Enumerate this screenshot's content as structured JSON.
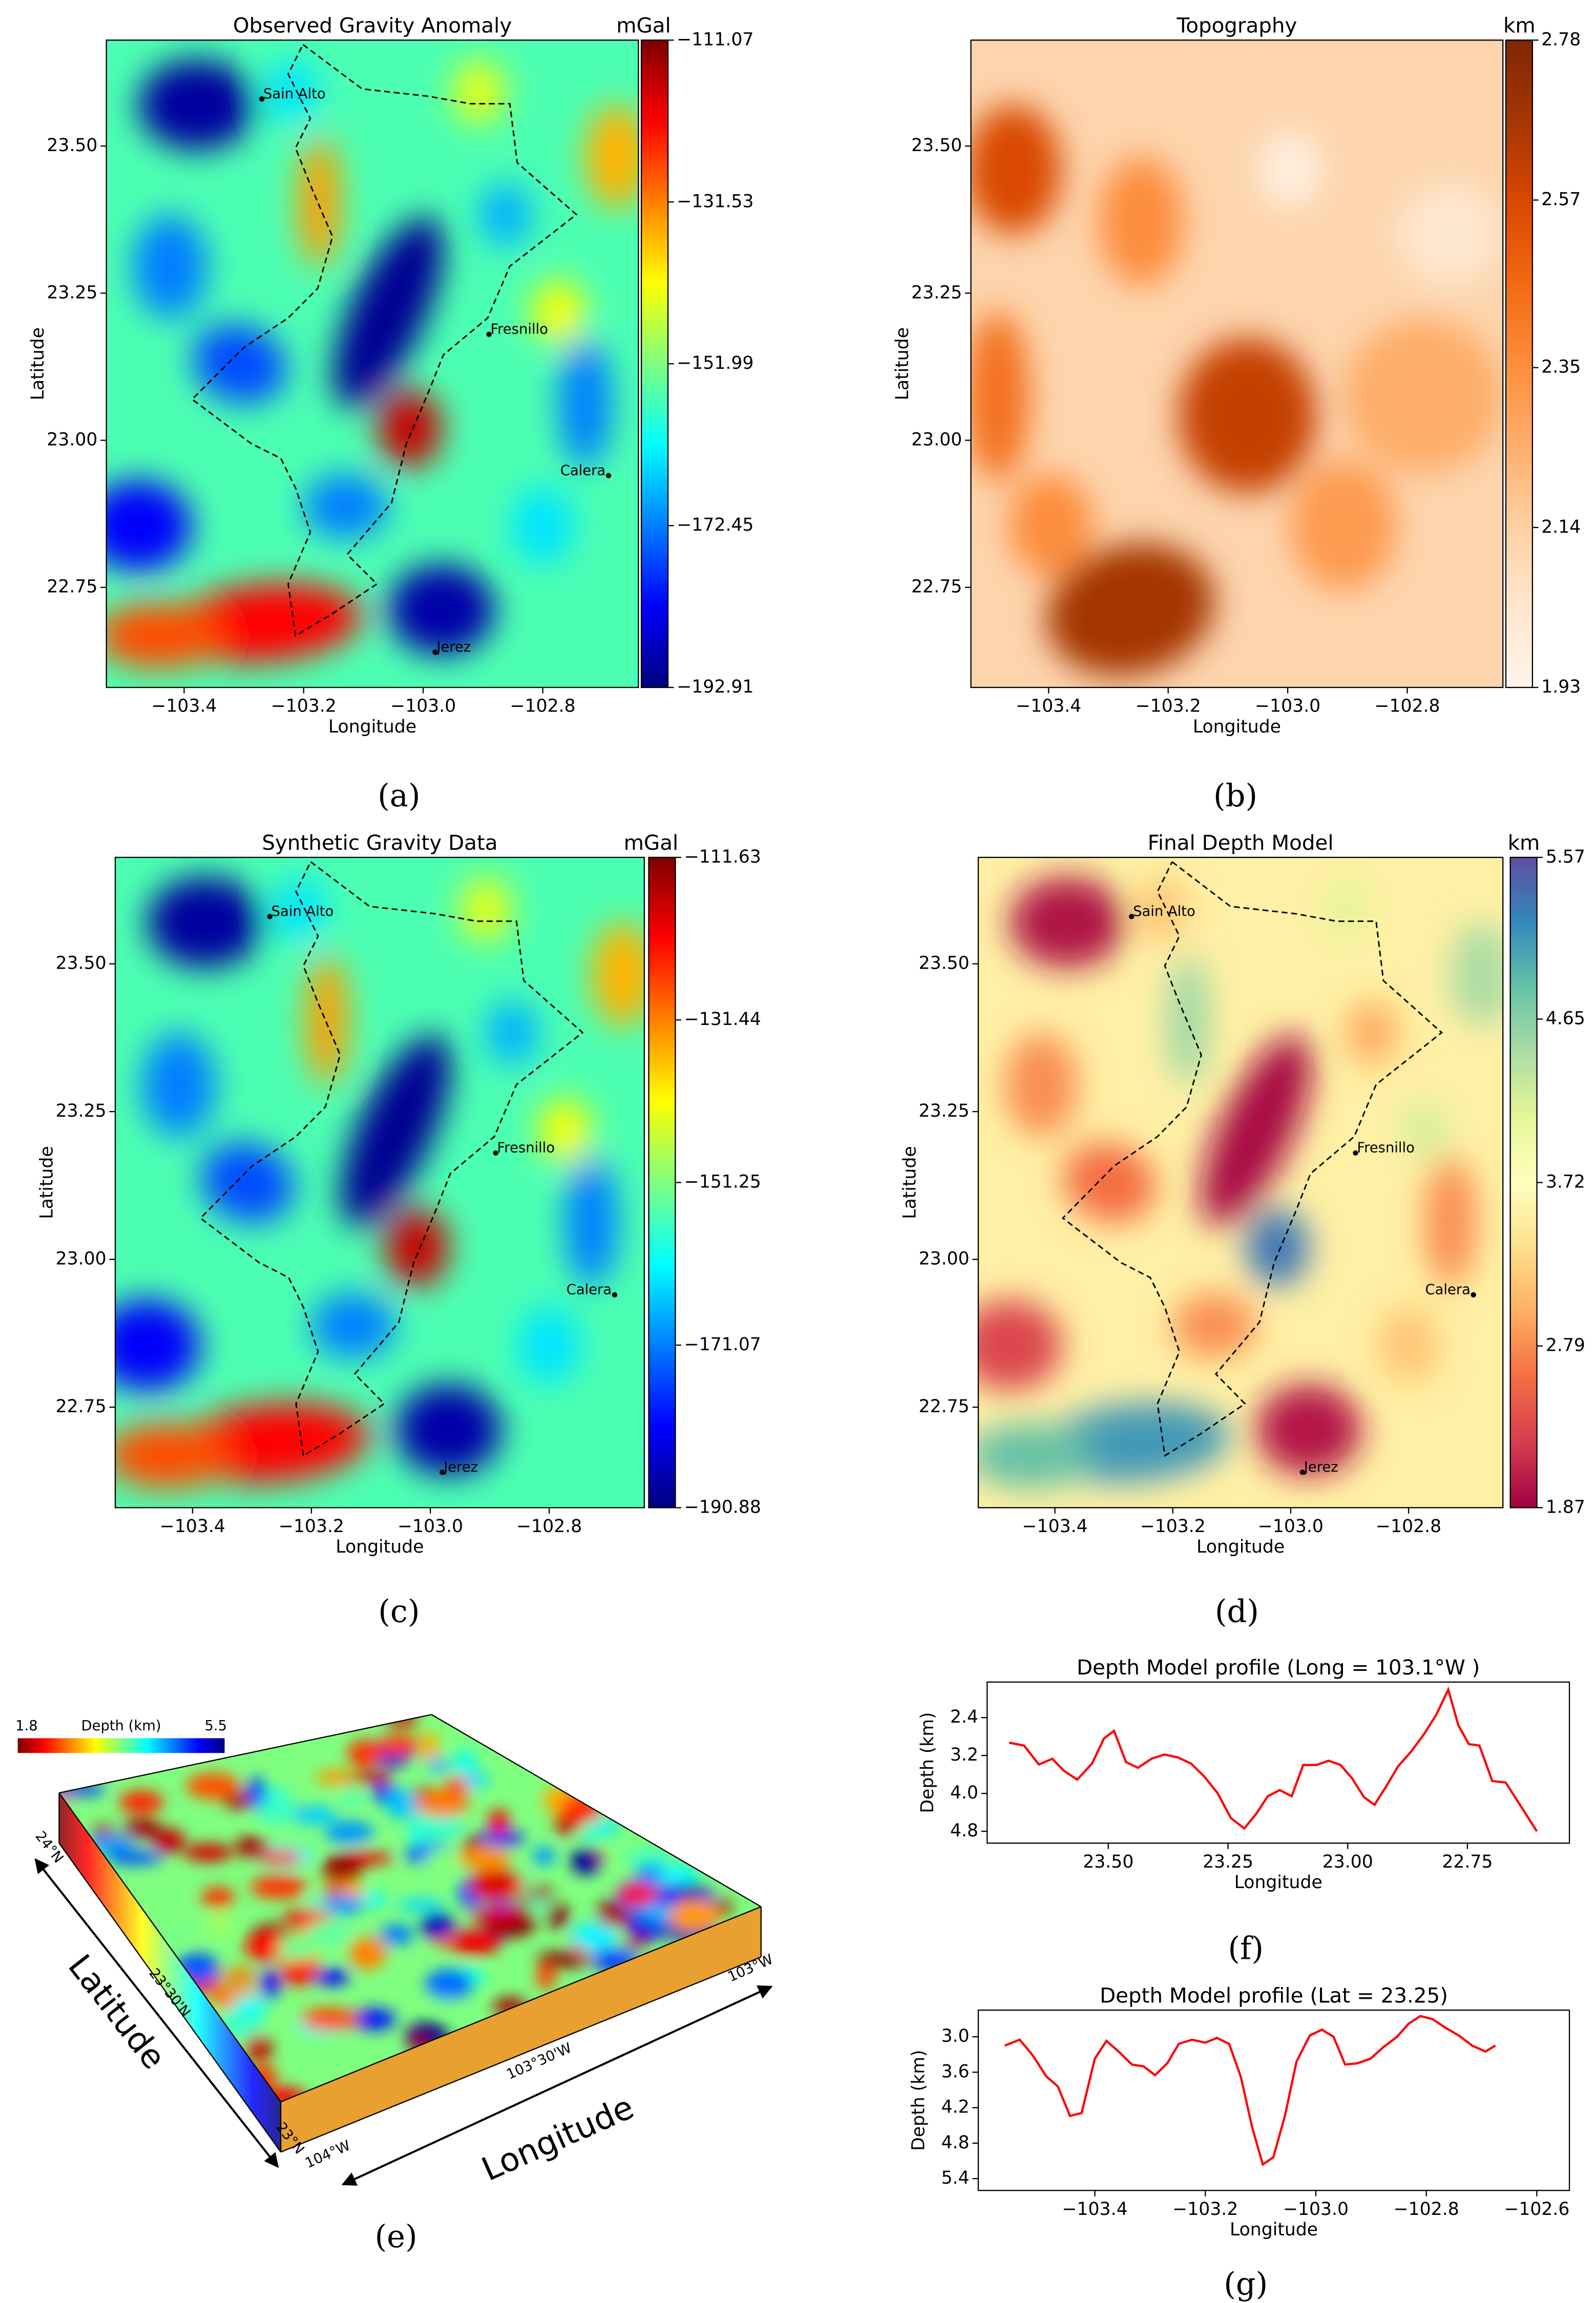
{
  "chart_data": [
    {
      "type": "heatmap",
      "panel_label": "(a)",
      "title": "Observed Gravity Anomaly",
      "xlabel": "Longitude",
      "ylabel": "Latitude",
      "colorbar_label": "mGal",
      "colormap": "jet",
      "xlim": [
        -103.53,
        -102.64
      ],
      "ylim": [
        22.58,
        23.68
      ],
      "xticks": [
        {
          "value": -103.4,
          "label": "−103.4"
        },
        {
          "value": -103.2,
          "label": "−103.2"
        },
        {
          "value": -103.0,
          "label": "−103.0"
        },
        {
          "value": -102.8,
          "label": "−102.8"
        }
      ],
      "yticks": [
        22.75,
        {
          "value": 23.0,
          "label": "23.00"
        },
        23.25,
        {
          "value": 23.5,
          "label": "23.50"
        }
      ],
      "clim": [
        -192.91,
        -111.07
      ],
      "cticks": [
        {
          "value": -111.07,
          "label": "−111.07"
        },
        {
          "value": -131.53,
          "label": "−131.53"
        },
        {
          "value": -151.99,
          "label": "−151.99"
        },
        {
          "value": -172.45,
          "label": "−172.45"
        },
        {
          "value": -192.91,
          "label": "−192.91"
        }
      ],
      "annotations": [
        {
          "text": "Sain Alto",
          "x": -103.27,
          "y": 23.58
        },
        {
          "text": "Fresnillo",
          "x": -102.89,
          "y": 23.18
        },
        {
          "text": "Calera",
          "x": -102.69,
          "y": 22.94
        },
        {
          "text": "Jerez",
          "x": -102.98,
          "y": 22.64
        }
      ]
    },
    {
      "type": "heatmap",
      "panel_label": "(b)",
      "title": "Topography",
      "xlabel": "Longitude",
      "ylabel": "Latitude",
      "colorbar_label": "km",
      "colormap": "Oranges",
      "xlim": [
        -103.53,
        -102.64
      ],
      "ylim": [
        22.58,
        23.68
      ],
      "xticks": [
        {
          "value": -103.4,
          "label": "−103.4"
        },
        {
          "value": -103.2,
          "label": "−103.2"
        },
        {
          "value": -103.0,
          "label": "−103.0"
        },
        {
          "value": -102.8,
          "label": "−102.8"
        }
      ],
      "yticks": [
        22.75,
        {
          "value": 23.0,
          "label": "23.00"
        },
        23.25,
        {
          "value": 23.5,
          "label": "23.50"
        }
      ],
      "clim": [
        1.93,
        2.78
      ],
      "cticks": [
        2.78,
        2.57,
        2.35,
        2.14,
        1.93
      ]
    },
    {
      "type": "heatmap",
      "panel_label": "(c)",
      "title": "Synthetic Gravity Data",
      "xlabel": "Longitude",
      "ylabel": "Latitude",
      "colorbar_label": "mGal",
      "colormap": "jet",
      "xlim": [
        -103.53,
        -102.64
      ],
      "ylim": [
        22.58,
        23.68
      ],
      "xticks": [
        {
          "value": -103.4,
          "label": "−103.4"
        },
        {
          "value": -103.2,
          "label": "−103.2"
        },
        {
          "value": -103.0,
          "label": "−103.0"
        },
        {
          "value": -102.8,
          "label": "−102.8"
        }
      ],
      "yticks": [
        22.75,
        {
          "value": 23.0,
          "label": "23.00"
        },
        23.25,
        {
          "value": 23.5,
          "label": "23.50"
        }
      ],
      "clim": [
        -190.88,
        -111.63
      ],
      "cticks": [
        {
          "value": -111.63,
          "label": "−111.63"
        },
        {
          "value": -131.44,
          "label": "−131.44"
        },
        {
          "value": -151.25,
          "label": "−151.25"
        },
        {
          "value": -171.07,
          "label": "−171.07"
        },
        {
          "value": -190.88,
          "label": "−190.88"
        }
      ],
      "annotations": [
        {
          "text": "Sain Alto",
          "x": -103.27,
          "y": 23.58
        },
        {
          "text": "Fresnillo",
          "x": -102.89,
          "y": 23.18
        },
        {
          "text": "Calera",
          "x": -102.69,
          "y": 22.94
        },
        {
          "text": "Jerez",
          "x": -102.98,
          "y": 22.64
        }
      ]
    },
    {
      "type": "heatmap",
      "panel_label": "(d)",
      "title": "Final Depth Model",
      "xlabel": "Longitude",
      "ylabel": "Latitude",
      "colorbar_label": "km",
      "colormap": "Spectral",
      "xlim": [
        -103.53,
        -102.64
      ],
      "ylim": [
        22.58,
        23.68
      ],
      "xticks": [
        {
          "value": -103.4,
          "label": "−103.4"
        },
        {
          "value": -103.2,
          "label": "−103.2"
        },
        {
          "value": -103.0,
          "label": "−103.0"
        },
        {
          "value": -102.8,
          "label": "−102.8"
        }
      ],
      "yticks": [
        22.75,
        {
          "value": 23.0,
          "label": "23.00"
        },
        23.25,
        {
          "value": 23.5,
          "label": "23.50"
        }
      ],
      "clim": [
        1.87,
        5.57
      ],
      "cticks": [
        5.57,
        4.65,
        3.72,
        2.79,
        1.87
      ],
      "annotations": [
        {
          "text": "Sain Alto",
          "x": -103.27,
          "y": 23.58
        },
        {
          "text": "Fresnillo",
          "x": -102.89,
          "y": 23.18
        },
        {
          "text": "Calera",
          "x": -102.69,
          "y": 22.94
        },
        {
          "text": "Jerez",
          "x": -102.98,
          "y": 22.64
        }
      ]
    },
    {
      "type": "surface",
      "panel_label": "(e)",
      "xlabel": "Longitude",
      "ylabel": "Latitude",
      "colorbar_label": "Depth (km)",
      "colormap": "jet_r",
      "clim": [
        1.8,
        5.5
      ],
      "cticks": [
        1.8,
        5.5
      ],
      "xlim": [
        -104,
        -103
      ],
      "ylim": [
        23,
        24
      ],
      "xticks": [
        {
          "value": -104,
          "label": "104°W"
        },
        {
          "value": -103.5,
          "label": "103°30'W"
        },
        {
          "value": -103,
          "label": "103°W"
        }
      ],
      "yticks": [
        {
          "value": 24,
          "label": "24°N"
        },
        {
          "value": 23.5,
          "label": "23°30'N"
        },
        {
          "value": 23,
          "label": "23°N"
        }
      ]
    },
    {
      "type": "line",
      "panel_label": "(f)",
      "title": "Depth Model profile (Long = 103.1°W )",
      "xlabel": "Longitude",
      "ylabel": "Depth (km)",
      "xlim": [
        23.753,
        22.537
      ],
      "ylim": [
        5.05,
        1.65
      ],
      "xticks": [
        {
          "value": 23.5,
          "label": "23.50"
        },
        23.25,
        {
          "value": 23.0,
          "label": "23.00"
        },
        22.75
      ],
      "yticks": [
        2.4,
        3.2,
        {
          "value": 4.0,
          "label": "4.0"
        },
        4.8
      ],
      "color": "#ff0000",
      "x": [
        23.707,
        23.676,
        23.645,
        23.617,
        23.593,
        23.565,
        23.534,
        23.509,
        23.488,
        23.463,
        23.438,
        23.41,
        23.383,
        23.355,
        23.327,
        23.299,
        23.272,
        23.244,
        23.216,
        23.191,
        23.167,
        23.142,
        23.117,
        23.093,
        23.065,
        23.04,
        23.015,
        22.991,
        22.966,
        22.944,
        22.92,
        22.895,
        22.867,
        22.84,
        22.815,
        22.79,
        22.769,
        22.747,
        22.725,
        22.698,
        22.67,
        22.605
      ],
      "values": [
        2.93,
        2.99,
        3.39,
        3.27,
        3.52,
        3.71,
        3.37,
        2.84,
        2.68,
        3.34,
        3.46,
        3.27,
        3.18,
        3.24,
        3.37,
        3.65,
        3.99,
        4.52,
        4.74,
        4.43,
        4.06,
        3.93,
        4.06,
        3.4,
        3.4,
        3.31,
        3.4,
        3.68,
        4.08,
        4.24,
        3.86,
        3.43,
        3.11,
        2.74,
        2.34,
        1.81,
        2.56,
        2.96,
        2.99,
        3.74,
        3.77,
        4.8
      ]
    },
    {
      "type": "line",
      "panel_label": "(g)",
      "title": "Depth Model profile (Lat = 23.25)",
      "xlabel": "Longitude",
      "ylabel": "Depth (km)",
      "xlim": [
        -103.611,
        -102.541
      ],
      "ylim": [
        5.6,
        2.55
      ],
      "xticks": [
        {
          "value": -103.4,
          "label": "−103.4"
        },
        {
          "value": -103.2,
          "label": "−103.2"
        },
        {
          "value": -103.0,
          "label": "−103.0"
        },
        {
          "value": -102.8,
          "label": "−102.8"
        },
        {
          "value": -102.6,
          "label": "−102.6"
        }
      ],
      "yticks": [
        {
          "value": 3.0,
          "label": "3.0"
        },
        3.6,
        4.2,
        4.8,
        5.4
      ],
      "color": "#ff0000",
      "x": [
        -103.563,
        -103.536,
        -103.512,
        -103.488,
        -103.467,
        -103.445,
        -103.424,
        -103.4,
        -103.379,
        -103.357,
        -103.333,
        -103.312,
        -103.291,
        -103.269,
        -103.248,
        -103.224,
        -103.2,
        -103.179,
        -103.157,
        -103.136,
        -103.115,
        -103.096,
        -103.077,
        -103.056,
        -103.035,
        -103.011,
        -102.989,
        -102.968,
        -102.947,
        -102.925,
        -102.901,
        -102.877,
        -102.853,
        -102.832,
        -102.811,
        -102.789,
        -102.765,
        -102.741,
        -102.717,
        -102.693,
        -102.675
      ],
      "values": [
        3.15,
        3.05,
        3.32,
        3.67,
        3.84,
        4.34,
        4.29,
        3.37,
        3.07,
        3.25,
        3.47,
        3.5,
        3.65,
        3.45,
        3.12,
        3.05,
        3.1,
        3.02,
        3.12,
        3.67,
        4.54,
        5.16,
        5.04,
        4.34,
        3.42,
        2.98,
        2.88,
        3.0,
        3.47,
        3.45,
        3.37,
        3.17,
        3.0,
        2.78,
        2.65,
        2.7,
        2.85,
        2.98,
        3.15,
        3.25,
        3.15
      ]
    }
  ]
}
